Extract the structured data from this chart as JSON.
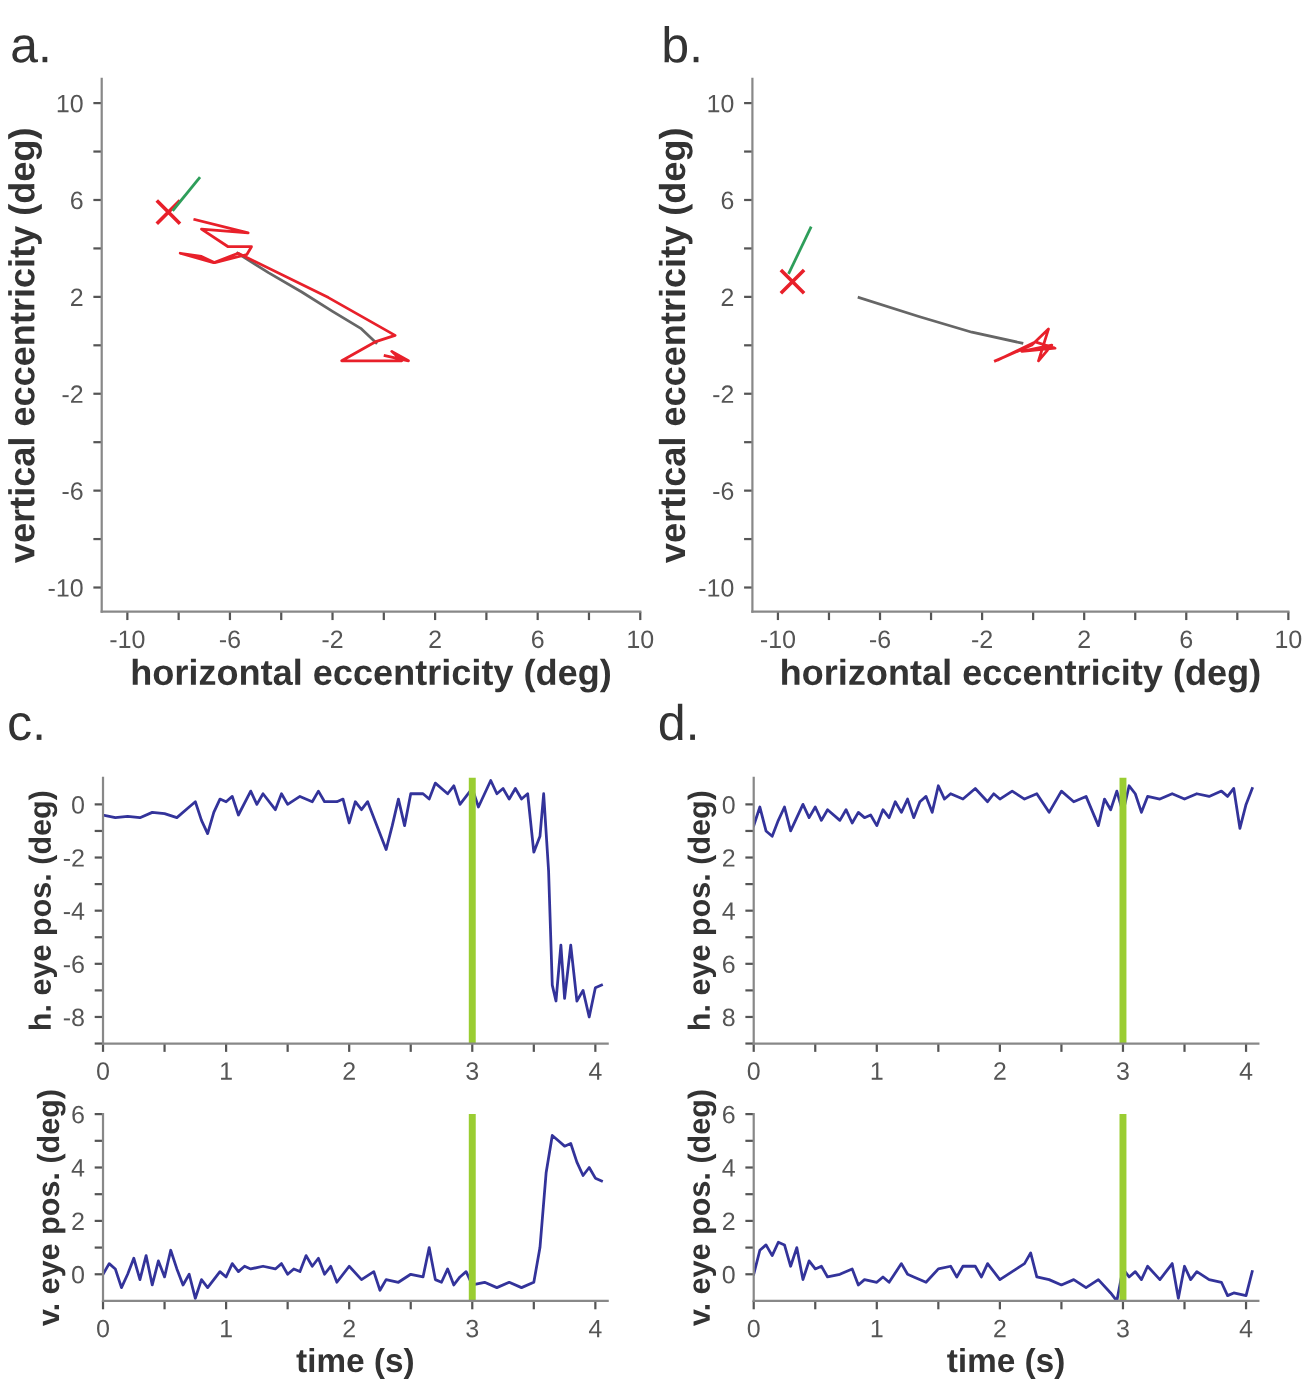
{
  "chart_data": [
    {
      "type": "line",
      "title": "a.",
      "xlabel": "horizontal eccentricity (deg)",
      "ylabel": "vertical eccentricity (deg)",
      "xlim": [
        -11,
        10
      ],
      "ylim": [
        -11,
        11
      ],
      "xticks": [
        -10,
        {
          "value": -8,
          "label": null
        },
        -6,
        {
          "value": -4,
          "label": null
        },
        -2,
        {
          "value": 0,
          "label": null
        },
        2,
        {
          "value": 4,
          "label": null
        },
        6,
        {
          "value": 8,
          "label": null
        },
        10
      ],
      "yticks": [
        -10,
        {
          "value": -8,
          "label": null
        },
        -6,
        {
          "value": -4,
          "label": null
        },
        -2,
        {
          "value": 0,
          "label": null
        },
        2,
        {
          "value": 4,
          "label": null
        },
        6,
        {
          "value": 8,
          "label": null
        },
        10
      ],
      "series": [
        {
          "color": "#2e9e5a",
          "x": [
            -8.2,
            -7.2
          ],
          "values": [
            5.6,
            6.9
          ]
        },
        {
          "color": "#666666",
          "x": [
            -5.7,
            -4.5,
            -3.2,
            -2.0,
            -0.9,
            -0.3
          ],
          "values": [
            3.8,
            3.0,
            2.2,
            1.4,
            0.7,
            0.1
          ]
        },
        {
          "color": "#e8202a",
          "x": [
            -7.37,
            -5.29,
            -7.11,
            -6.07,
            -5.16,
            -5.34,
            -6.59,
            -7.11,
            -7.94,
            -6.64,
            -5.68,
            -2.16,
            0.44,
            -0.34,
            -1.64,
            0.7,
            0.31,
            0.96,
            0.05
          ],
          "values": [
            5.19,
            4.64,
            4.8,
            4.07,
            4.07,
            3.75,
            3.41,
            3.67,
            3.8,
            3.41,
            3.8,
            1.97,
            0.41,
            0.14,
            -0.64,
            -0.64,
            -0.25,
            -0.64,
            -0.43
          ]
        },
        {
          "type": "scatter",
          "marker": "cross",
          "color": "#e8202a",
          "x": [
            -8.4
          ],
          "values": [
            5.5
          ]
        }
      ]
    },
    {
      "type": "line",
      "title": "b.",
      "xlabel": "horizontal eccentricity (deg)",
      "ylabel": "vertical eccentricity (deg)",
      "xlim": [
        -11,
        10
      ],
      "ylim": [
        -11,
        11
      ],
      "xticks": [
        -10,
        {
          "value": -8,
          "label": null
        },
        -6,
        {
          "value": -4,
          "label": null
        },
        -2,
        {
          "value": 0,
          "label": null
        },
        2,
        {
          "value": 4,
          "label": null
        },
        6,
        {
          "value": 8,
          "label": null
        },
        10
      ],
      "yticks": [
        -10,
        {
          "value": -8,
          "label": null
        },
        -6,
        {
          "value": -4,
          "label": null
        },
        -2,
        {
          "value": 0,
          "label": null
        },
        2,
        {
          "value": 4,
          "label": null
        },
        6,
        {
          "value": 8,
          "label": null
        },
        10
      ],
      "series": [
        {
          "color": "#2e9e5a",
          "x": [
            -9.56,
            -8.72
          ],
          "values": [
            3.0,
            4.85
          ]
        },
        {
          "color": "#666666",
          "x": [
            -6.82,
            -4.48,
            -2.4,
            -0.44
          ],
          "values": [
            1.97,
            1.19,
            0.54,
            0.09
          ]
        },
        {
          "color": "#e8202a",
          "x": [
            -1.48,
            -0.05,
            0.6,
            0.21,
            0.73,
            -0.44,
            0.86,
            0.08,
            -1.35
          ],
          "values": [
            -0.64,
            0.01,
            0.67,
            -0.64,
            0.01,
            -0.25,
            -0.12,
            0.14,
            -0.59
          ]
        },
        {
          "type": "scatter",
          "marker": "cross",
          "color": "#e8202a",
          "x": [
            -9.43
          ],
          "values": [
            2.63
          ]
        }
      ]
    },
    {
      "type": "line",
      "title": "c.",
      "ylabel": "h. eye pos. (deg)",
      "xlim": [
        0,
        4.1
      ],
      "ylim": [
        -9,
        1
      ],
      "xticks": [
        0,
        {
          "value": 0.5,
          "label": null
        },
        1,
        {
          "value": 1.5,
          "label": null
        },
        2,
        {
          "value": 2.5,
          "label": null
        },
        3,
        {
          "value": 3.5,
          "label": null
        },
        4
      ],
      "yticks": [
        {
          "value": -9,
          "label": null
        },
        -8,
        {
          "value": -7,
          "label": null
        },
        -6,
        {
          "value": -5,
          "label": null
        },
        -4,
        {
          "value": -3,
          "label": null
        },
        -2,
        {
          "value": -1,
          "label": null
        },
        0
      ],
      "ref_lines": [
        {
          "axis": "x",
          "value": 3,
          "color": "#9acd32"
        }
      ],
      "series": [
        {
          "type": "line",
          "color": "#33339a",
          "x": [
            0,
            0.1,
            0.2,
            0.3,
            0.4,
            0.5,
            0.6,
            0.7,
            0.75,
            0.8,
            0.85,
            0.9,
            0.95,
            1.0,
            1.05,
            1.1,
            1.2,
            1.25,
            1.3,
            1.4,
            1.45,
            1.5,
            1.6,
            1.7,
            1.75,
            1.8,
            1.9,
            1.95,
            2.0,
            2.05,
            2.1,
            2.15,
            2.2,
            2.3,
            2.35,
            2.4,
            2.45,
            2.5,
            2.6,
            2.65,
            2.7,
            2.8,
            2.85,
            2.9,
            3.0,
            3.05,
            3.1,
            3.15,
            3.2,
            3.25,
            3.3,
            3.35,
            3.4,
            3.45,
            3.5,
            3.55,
            3.58,
            3.62,
            3.65,
            3.68,
            3.72,
            3.75,
            3.8,
            3.85,
            3.9,
            3.95,
            4.0,
            4.05
          ],
          "values": [
            -0.4,
            -0.5,
            -0.45,
            -0.5,
            -0.3,
            -0.35,
            -0.5,
            -0.1,
            0.1,
            -0.6,
            -1.1,
            -0.3,
            0.2,
            0.1,
            0.3,
            -0.4,
            0.5,
            0,
            0.4,
            -0.2,
            0.4,
            0,
            0.3,
            0.1,
            0.5,
            0.1,
            0.1,
            0.2,
            -0.7,
            0.1,
            -0.2,
            0.1,
            -0.5,
            -1.7,
            -0.8,
            0.2,
            -0.8,
            0.4,
            0.4,
            0.2,
            0.8,
            0.4,
            0.7,
            0,
            0.6,
            -0.1,
            0.4,
            0.9,
            0.4,
            0.6,
            0.2,
            0.6,
            0.2,
            0.4,
            -1.8,
            -1.2,
            0.4,
            -2.5,
            -6.8,
            -7.4,
            -5.3,
            -7.3,
            -5.3,
            -7.4,
            -7.0,
            -8.0,
            -6.9,
            -6.8
          ]
        }
      ]
    },
    {
      "type": "line",
      "xlabel": "time (s)",
      "ylabel": "v. eye pos. (deg)",
      "xlim": [
        0,
        4.1
      ],
      "ylim": [
        -1,
        6
      ],
      "xticks": [
        0,
        {
          "value": 0.5,
          "label": null
        },
        1,
        {
          "value": 1.5,
          "label": null
        },
        2,
        {
          "value": 2.5,
          "label": null
        },
        3,
        {
          "value": 3.5,
          "label": null
        },
        4
      ],
      "yticks": [
        0,
        {
          "value": 1,
          "label": null
        },
        2,
        {
          "value": 3,
          "label": null
        },
        4,
        {
          "value": 5,
          "label": null
        },
        6
      ],
      "ref_lines": [
        {
          "axis": "x",
          "value": 3,
          "color": "#9acd32"
        }
      ],
      "series": [
        {
          "type": "line",
          "color": "#33339a",
          "x": [
            0,
            0.05,
            0.1,
            0.15,
            0.2,
            0.25,
            0.3,
            0.35,
            0.4,
            0.45,
            0.5,
            0.55,
            0.6,
            0.65,
            0.7,
            0.75,
            0.8,
            0.85,
            0.9,
            0.95,
            1.0,
            1.05,
            1.1,
            1.15,
            1.2,
            1.3,
            1.4,
            1.45,
            1.5,
            1.55,
            1.6,
            1.65,
            1.7,
            1.75,
            1.8,
            1.85,
            1.9,
            2.0,
            2.1,
            2.2,
            2.25,
            2.3,
            2.4,
            2.5,
            2.6,
            2.65,
            2.7,
            2.75,
            2.8,
            2.85,
            2.9,
            2.95,
            3.0,
            3.1,
            3.2,
            3.3,
            3.4,
            3.5,
            3.55,
            3.6,
            3.65,
            3.7,
            3.75,
            3.8,
            3.85,
            3.9,
            3.95,
            4.0,
            4.05
          ],
          "values": [
            0,
            0.4,
            0.2,
            -0.5,
            0,
            0.6,
            -0.2,
            0.7,
            -0.4,
            0.5,
            -0.1,
            0.9,
            0.2,
            -0.4,
            0,
            -0.9,
            -0.2,
            -0.5,
            -0.2,
            0.1,
            -0.1,
            0.4,
            0.1,
            0.3,
            0.2,
            0.3,
            0.2,
            0.4,
            0,
            0.2,
            0.1,
            0.7,
            0.3,
            0.6,
            0,
            0.3,
            -0.3,
            0.3,
            -0.2,
            0.1,
            -0.6,
            -0.2,
            -0.3,
            0,
            -0.1,
            1.0,
            -0.2,
            -0.3,
            0.2,
            -0.4,
            -0.1,
            0.1,
            -0.4,
            -0.3,
            -0.5,
            -0.3,
            -0.5,
            -0.3,
            1.0,
            3.8,
            5.2,
            5.0,
            4.8,
            4.9,
            4.2,
            3.7,
            4.0,
            3.6,
            3.5
          ]
        }
      ]
    },
    {
      "type": "line",
      "title": "d.",
      "ylabel": "h. eye pos. (deg)",
      "xlim": [
        0,
        4.1
      ],
      "ylim": [
        9,
        -1
      ],
      "xticks": [
        0,
        {
          "value": 0.5,
          "label": null
        },
        1,
        {
          "value": 1.5,
          "label": null
        },
        2,
        {
          "value": 2.5,
          "label": null
        },
        3,
        {
          "value": 3.5,
          "label": null
        },
        4
      ],
      "yticks": [
        0,
        {
          "value": 1,
          "label": null
        },
        2,
        {
          "value": 3,
          "label": null
        },
        4,
        {
          "value": 5,
          "label": null
        },
        6,
        {
          "value": 7,
          "label": null
        },
        8,
        {
          "value": 9,
          "label": null
        }
      ],
      "ref_lines": [
        {
          "axis": "x",
          "value": 3,
          "color": "#9acd32"
        }
      ],
      "series": [
        {
          "type": "line",
          "color": "#33339a",
          "x": [
            0,
            0.05,
            0.1,
            0.15,
            0.2,
            0.25,
            0.3,
            0.35,
            0.4,
            0.45,
            0.5,
            0.55,
            0.6,
            0.7,
            0.75,
            0.8,
            0.85,
            0.9,
            0.95,
            1.0,
            1.05,
            1.1,
            1.15,
            1.2,
            1.25,
            1.3,
            1.35,
            1.4,
            1.45,
            1.5,
            1.55,
            1.6,
            1.7,
            1.8,
            1.9,
            1.95,
            2.0,
            2.1,
            2.2,
            2.3,
            2.4,
            2.5,
            2.6,
            2.7,
            2.8,
            2.85,
            2.9,
            2.95,
            3.0,
            3.05,
            3.1,
            3.15,
            3.2,
            3.3,
            3.4,
            3.5,
            3.6,
            3.7,
            3.8,
            3.85,
            3.9,
            3.95,
            4.0,
            4.05
          ],
          "values": [
            0.8,
            0.1,
            1.0,
            1.2,
            0.6,
            0.1,
            1.0,
            0.5,
            0,
            0.5,
            0.1,
            0.6,
            0.2,
            0.6,
            0.2,
            0.7,
            0.3,
            0.5,
            0.4,
            0.8,
            0.2,
            0.5,
            -0.1,
            0.3,
            -0.2,
            0.5,
            -0.1,
            -0.3,
            0.3,
            -0.7,
            -0.2,
            -0.4,
            -0.2,
            -0.6,
            -0.1,
            -0.4,
            -0.2,
            -0.5,
            -0.2,
            -0.4,
            0.3,
            -0.5,
            -0.1,
            -0.3,
            0.8,
            -0.2,
            0.2,
            -0.5,
            0.3,
            -0.7,
            -0.4,
            0.3,
            -0.3,
            -0.2,
            -0.4,
            -0.2,
            -0.4,
            -0.3,
            -0.5,
            -0.3,
            -0.6,
            0.9,
            0,
            -0.6
          ]
        }
      ]
    },
    {
      "type": "line",
      "xlabel": "time (s)",
      "ylabel": "v. eye pos. (deg)",
      "xlim": [
        0,
        4.1
      ],
      "ylim": [
        -1,
        6
      ],
      "xticks": [
        0,
        {
          "value": 0.5,
          "label": null
        },
        1,
        {
          "value": 1.5,
          "label": null
        },
        2,
        {
          "value": 2.5,
          "label": null
        },
        3,
        {
          "value": 3.5,
          "label": null
        },
        4
      ],
      "yticks": [
        0,
        {
          "value": 1,
          "label": null
        },
        2,
        {
          "value": 3,
          "label": null
        },
        4,
        {
          "value": 5,
          "label": null
        },
        6
      ],
      "ref_lines": [
        {
          "axis": "x",
          "value": 3,
          "color": "#9acd32"
        }
      ],
      "series": [
        {
          "type": "line",
          "color": "#33339a",
          "x": [
            0,
            0.05,
            0.1,
            0.15,
            0.2,
            0.25,
            0.3,
            0.35,
            0.4,
            0.45,
            0.5,
            0.55,
            0.6,
            0.7,
            0.8,
            0.85,
            0.9,
            1.0,
            1.05,
            1.1,
            1.2,
            1.25,
            1.3,
            1.4,
            1.5,
            1.6,
            1.65,
            1.7,
            1.8,
            1.85,
            1.9,
            2.0,
            2.1,
            2.2,
            2.25,
            2.3,
            2.4,
            2.5,
            2.6,
            2.7,
            2.8,
            2.9,
            2.95,
            3.0,
            3.05,
            3.1,
            3.15,
            3.2,
            3.3,
            3.4,
            3.45,
            3.5,
            3.55,
            3.6,
            3.7,
            3.8,
            3.85,
            3.9,
            4.0,
            4.05
          ],
          "values": [
            0,
            0.9,
            1.1,
            0.7,
            1.2,
            1.1,
            0.3,
            1.0,
            -0.2,
            0.5,
            0.2,
            0.3,
            -0.1,
            0,
            0.2,
            -0.4,
            -0.2,
            -0.3,
            -0.1,
            -0.3,
            0.4,
            0,
            -0.1,
            -0.3,
            0.2,
            0.3,
            -0.1,
            0.3,
            0.3,
            -0.1,
            0.4,
            -0.2,
            0.1,
            0.4,
            0.8,
            -0.1,
            -0.2,
            -0.4,
            -0.2,
            -0.5,
            -0.2,
            -0.7,
            -1.0,
            0.2,
            -0.1,
            0.1,
            -0.2,
            0.3,
            -0.2,
            0.4,
            -0.9,
            0.3,
            -0.2,
            0.1,
            -0.2,
            -0.3,
            -0.8,
            -0.7,
            -0.8,
            0.1
          ]
        }
      ]
    }
  ]
}
